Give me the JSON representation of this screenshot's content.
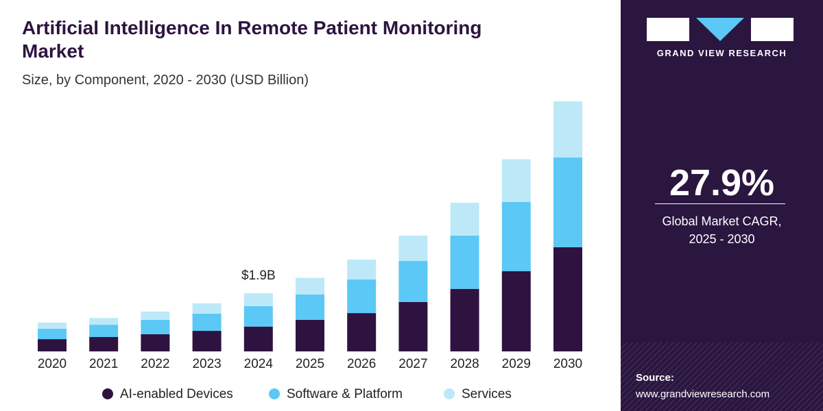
{
  "chart_data": {
    "type": "stacked-bar",
    "title": "Artificial Intelligence In Remote Patient Monitoring Market",
    "subtitle": "Size, by Component, 2020 - 2030 (USD Billion)",
    "categories": [
      "2020",
      "2021",
      "2022",
      "2023",
      "2024",
      "2025",
      "2026",
      "2027",
      "2028",
      "2029",
      "2030"
    ],
    "series": [
      {
        "name": "AI-enabled Devices",
        "color": "#2e1340",
        "values": [
          0.4,
          0.47,
          0.56,
          0.67,
          0.81,
          1.03,
          1.25,
          1.61,
          2.04,
          2.62,
          3.4
        ]
      },
      {
        "name": "Software & Platform",
        "color": "#5bc8f5",
        "values": [
          0.34,
          0.4,
          0.47,
          0.56,
          0.67,
          0.83,
          1.1,
          1.34,
          1.74,
          2.26,
          2.93
        ]
      },
      {
        "name": "Services",
        "color": "#bde8f8",
        "values": [
          0.2,
          0.22,
          0.27,
          0.34,
          0.42,
          0.54,
          0.65,
          0.83,
          1.07,
          1.39,
          1.83
        ]
      }
    ],
    "annotation": {
      "label": "$1.9B",
      "x": "2024",
      "value": 1.9
    }
  },
  "side_panel": {
    "brand": "GRAND VIEW RESEARCH",
    "cagr": "27.9%",
    "cagr_text": "Global Market CAGR, 2025 - 2030",
    "source_label": "Source:",
    "source_url": "www.grandviewresearch.com"
  }
}
